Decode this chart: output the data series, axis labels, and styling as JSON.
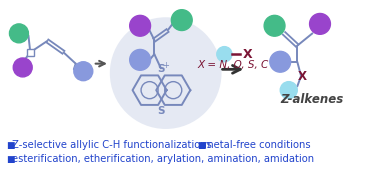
{
  "bg_color": "#ffffff",
  "bullet_color": "#2244cc",
  "text_color": "#2244cc",
  "arrow_color": "#555555",
  "x_label_color": "#7b1535",
  "z_alkenes_color": "#444444",
  "ellipse_color": "#d0d8ea",
  "bullet1": "Z-selective allylic C-H functionalizations",
  "bullet2": "metal-free conditions",
  "bullet3": "esterification, etherification, arylation, amination, amidation",
  "x_eq": "X = N, O, S, C",
  "z_label": "Z-alkenes",
  "circle_green": "#44bb88",
  "circle_purple": "#9944cc",
  "circle_blue": "#8899dd",
  "circle_cyan": "#99ddee",
  "bond_color": "#7788bb",
  "thianthrene_ring_color": "#7788bb",
  "s_color": "#7788bb",
  "figsize": [
    3.78,
    1.86
  ],
  "dpi": 100
}
